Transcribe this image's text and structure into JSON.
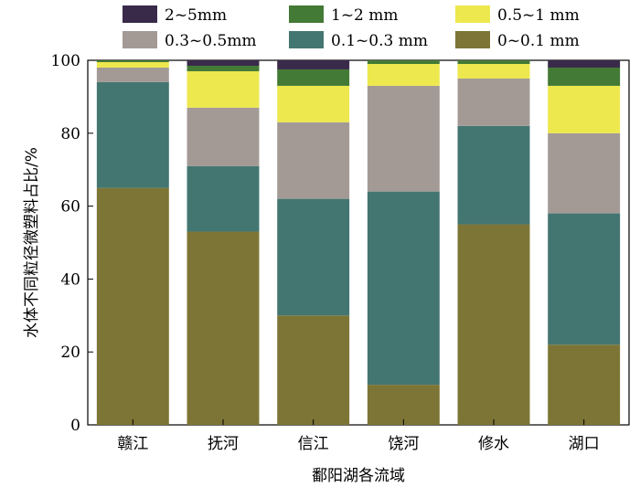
{
  "chart_data": {
    "type": "bar",
    "stacked": true,
    "categories": [
      "赣江",
      "抚河",
      "信江",
      "饶河",
      "修水",
      "湖口"
    ],
    "series": [
      {
        "name": "0~0.1 mm",
        "color": "#7d7535",
        "values": [
          65,
          53,
          30,
          11,
          55,
          22
        ]
      },
      {
        "name": "0.1~0.3 mm",
        "color": "#437671",
        "values": [
          29,
          18,
          32,
          53,
          27,
          36
        ]
      },
      {
        "name": "0.3~0.5mm",
        "color": "#a39a96",
        "values": [
          4,
          16,
          21,
          29,
          13,
          22
        ]
      },
      {
        "name": "0.5~1 mm",
        "color": "#ede84e",
        "values": [
          1.5,
          10,
          10,
          6,
          4,
          13
        ]
      },
      {
        "name": "1~2 mm",
        "color": "#437a35",
        "values": [
          0.5,
          1.5,
          4.5,
          1,
          1,
          5
        ]
      },
      {
        "name": "2~5mm",
        "color": "#3a2a4a",
        "values": [
          0,
          1.5,
          2.5,
          0,
          0,
          2
        ]
      }
    ],
    "legend_order": [
      "2~5mm",
      "1~2 mm",
      "0.5~1 mm",
      "0.3~0.5mm",
      "0.1~0.3 mm",
      "0~0.1 mm"
    ],
    "xlabel": "鄱阳湖各流域",
    "ylabel": "水体不同粒径微塑料占比/%",
    "ylim": [
      0,
      100
    ],
    "yticks": [
      0,
      20,
      40,
      60,
      80,
      100
    ],
    "grid": false,
    "legend_position": "top"
  }
}
